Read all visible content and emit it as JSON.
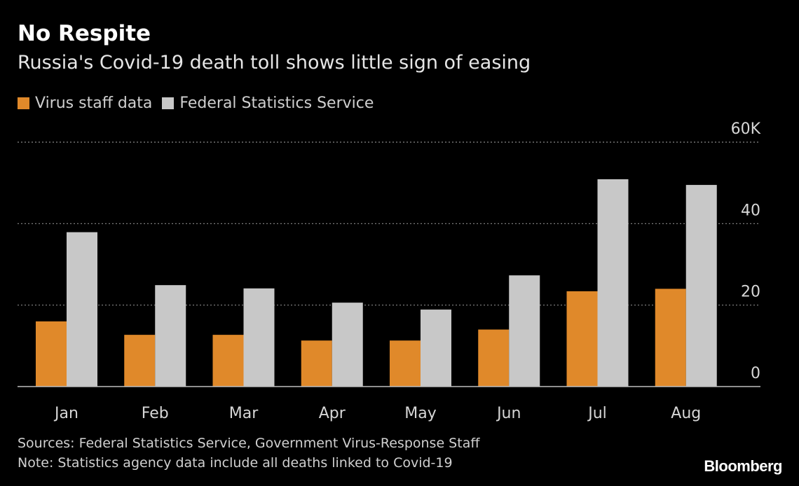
{
  "title": "No Respite",
  "subtitle": "Russia's Covid-19 death toll shows little sign of easing",
  "sources": "Sources: Federal Statistics Service, Government Virus-Response Staff",
  "note": "Note: Statistics agency data include all deaths linked to Covid-19",
  "brand": "Bloomberg",
  "colors": {
    "background": "#000000",
    "virus_staff": "#e0892a",
    "federal_stats": "#c8c8c8",
    "grid": "#8a8a8a"
  },
  "chart_data": {
    "type": "bar",
    "categories": [
      "Jan",
      "Feb",
      "Mar",
      "Apr",
      "May",
      "Jun",
      "Jul",
      "Aug"
    ],
    "series": [
      {
        "name": "Virus staff data",
        "values": [
          16000,
          12700,
          12700,
          11300,
          11300,
          14000,
          23400,
          24000
        ]
      },
      {
        "name": "Federal Statistics Service",
        "values": [
          37900,
          24900,
          24100,
          20600,
          18900,
          27300,
          50900,
          49500
        ]
      }
    ],
    "yticks": [
      "0",
      "20",
      "40",
      "60K"
    ],
    "ylim": [
      0,
      60000
    ],
    "ytick_values": [
      0,
      20000,
      40000,
      60000
    ],
    "grid": true,
    "legend_position": "top-left"
  }
}
